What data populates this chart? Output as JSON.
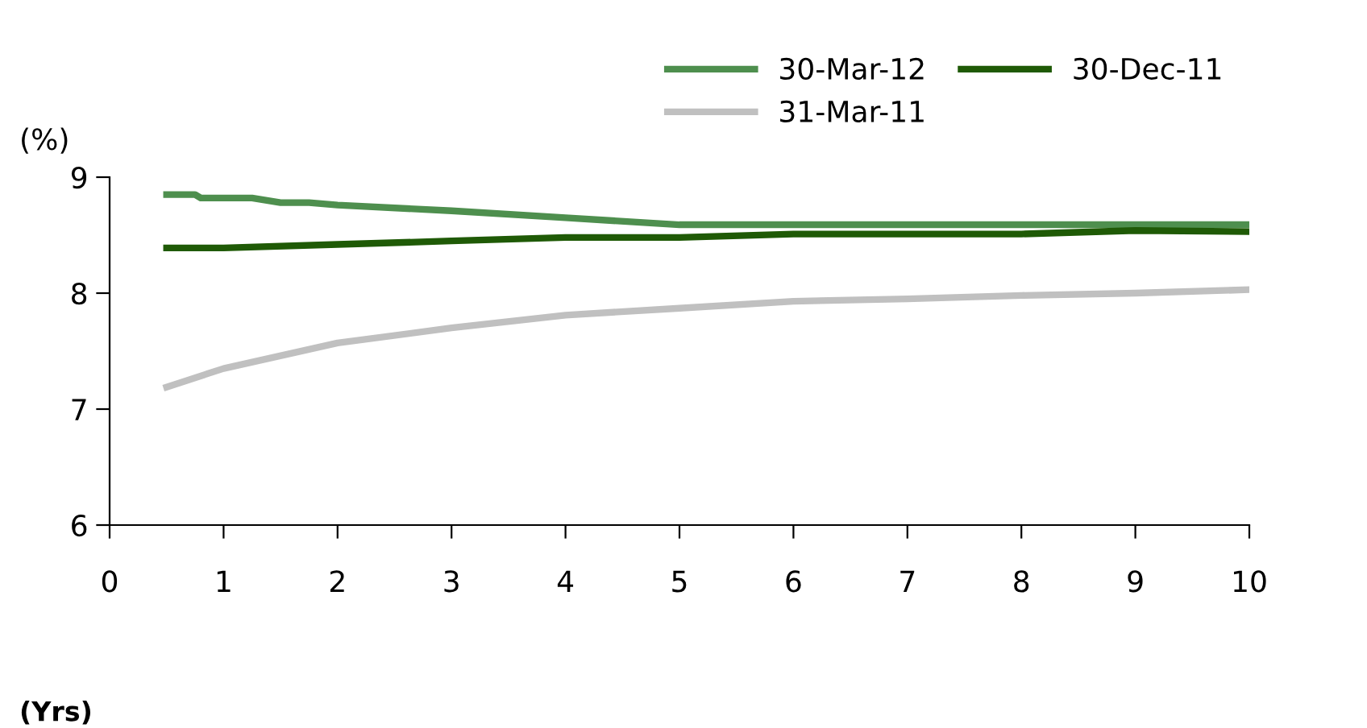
{
  "chart_data": {
    "type": "line",
    "xlabel": "(Yrs)",
    "ylabel": "(%)",
    "xlim": [
      0,
      10
    ],
    "ylim": [
      6,
      9
    ],
    "xticks": [
      0,
      1,
      2,
      3,
      4,
      5,
      6,
      7,
      8,
      9,
      10
    ],
    "yticks": [
      6,
      7,
      8,
      9
    ],
    "grid": false,
    "legend": "top right",
    "marker": "none",
    "line_style": "solid",
    "series": [
      {
        "name": "30-Mar-12",
        "color": "#4e8f4e",
        "x": [
          0.5,
          0.75,
          0.8,
          1.25,
          1.5,
          1.75,
          2,
          3,
          4,
          5,
          6,
          7,
          8,
          9,
          10
        ],
        "values": [
          8.85,
          8.85,
          8.82,
          8.82,
          8.78,
          8.78,
          8.76,
          8.71,
          8.65,
          8.59,
          8.59,
          8.59,
          8.59,
          8.59,
          8.59
        ]
      },
      {
        "name": "31-Mar-11",
        "color": "#c0c0c0",
        "x": [
          0.5,
          1,
          2,
          3,
          4,
          5,
          6,
          7,
          8,
          9,
          10
        ],
        "values": [
          7.19,
          7.35,
          7.57,
          7.7,
          7.81,
          7.87,
          7.93,
          7.95,
          7.98,
          8.0,
          8.03
        ]
      },
      {
        "name": "30-Dec-11",
        "color": "#1f5a06",
        "x": [
          0.5,
          1,
          2,
          3,
          4,
          5,
          6,
          7,
          8,
          9,
          10
        ],
        "values": [
          8.39,
          8.39,
          8.42,
          8.45,
          8.48,
          8.48,
          8.51,
          8.51,
          8.51,
          8.54,
          8.53
        ]
      }
    ]
  }
}
